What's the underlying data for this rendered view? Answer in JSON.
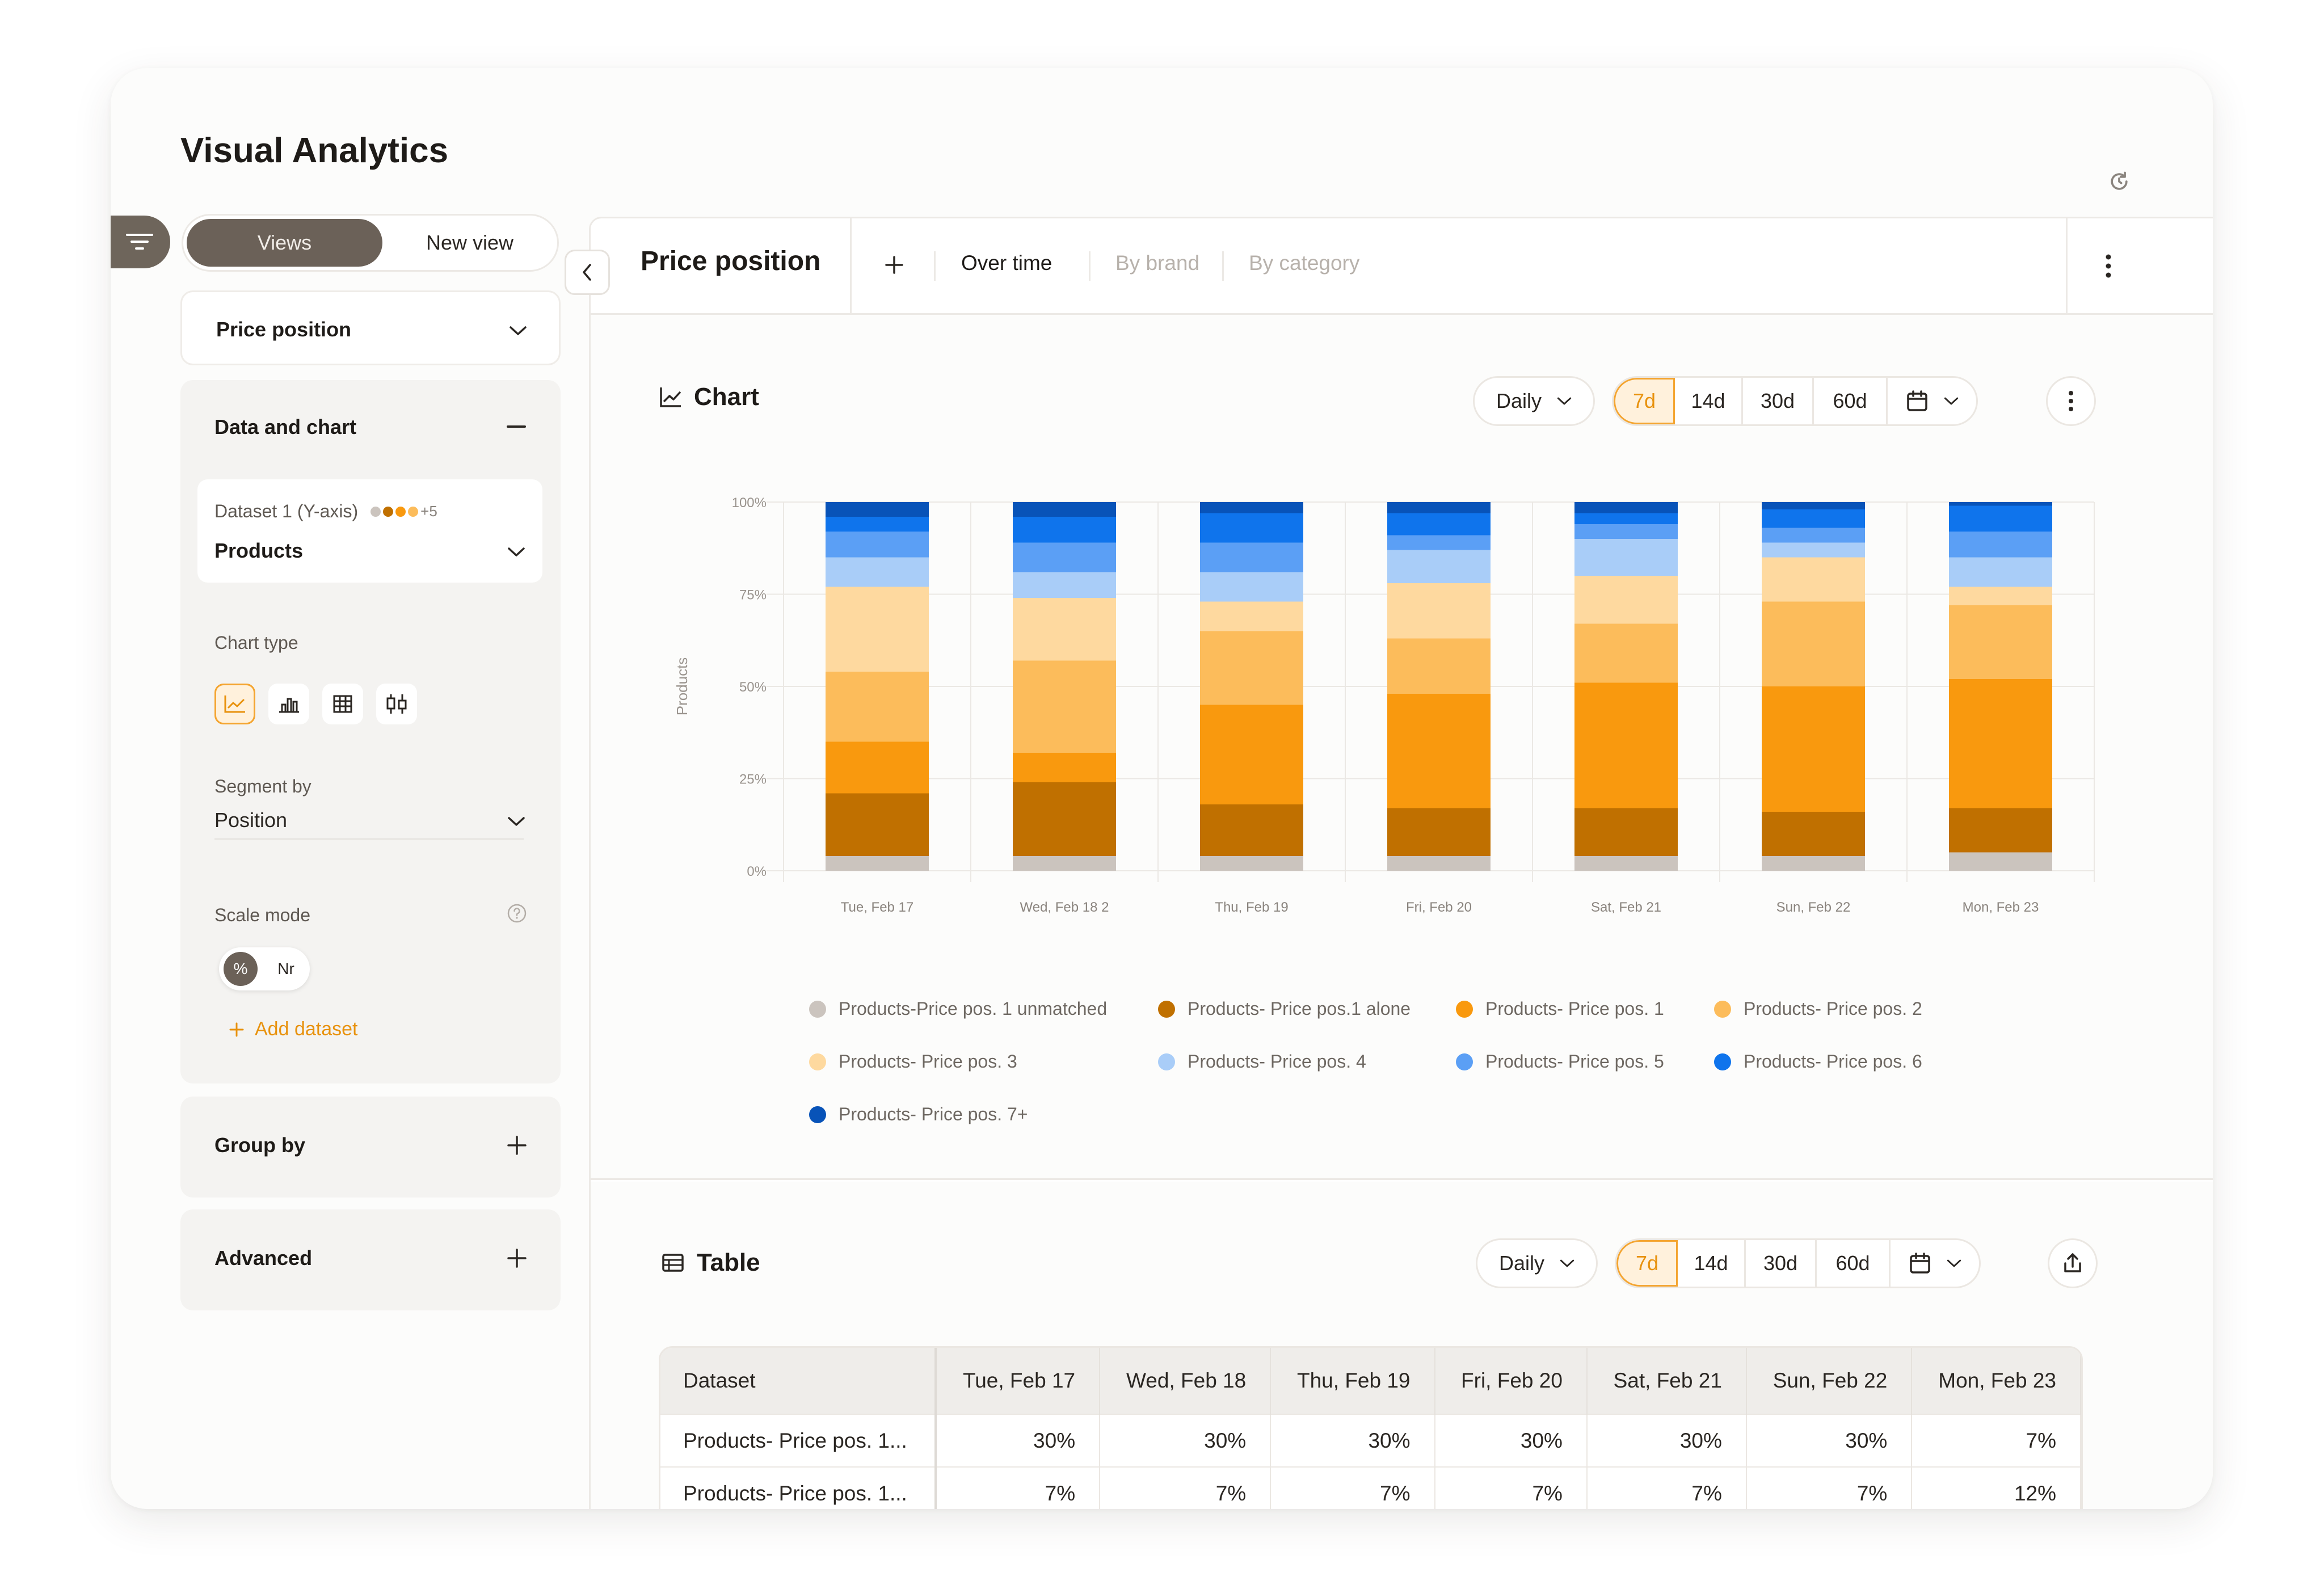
{
  "page_title": "Visual Analytics",
  "sidebar": {
    "views_label": "Views",
    "new_view_label": "New view",
    "selected_view": "Price position",
    "data_panel": {
      "title": "Data and chart",
      "dataset_label": "Dataset 1 (Y-axis)",
      "dataset_more": "+5",
      "dataset_value": "Products",
      "chart_type_label": "Chart type",
      "chart_types": [
        "line-chart-icon",
        "bar-chart-icon",
        "table-grid-icon",
        "candlestick-icon"
      ],
      "segment_by_label": "Segment by",
      "segment_by_value": "Position",
      "scale_mode_label": "Scale mode",
      "scale_pct": "%",
      "scale_nr": "Nr",
      "add_dataset": "Add dataset"
    },
    "group_by": "Group by",
    "advanced": "Advanced"
  },
  "main": {
    "title": "Price position",
    "tabs": [
      "Over time",
      "By brand",
      "By category"
    ],
    "active_tab": "Over time",
    "chart_section_title": "Chart",
    "table_section_title": "Table",
    "interval": "Daily",
    "ranges": [
      "7d",
      "14d",
      "30d",
      "60d"
    ],
    "active_range": "7d"
  },
  "colors": {
    "accent": "#f4a531",
    "s0": "#cbc4be",
    "s1": "#c07000",
    "s2": "#f9990e",
    "s3": "#fcbc5b",
    "s4": "#fed99f",
    "s5": "#a9cdf8",
    "s6": "#5b9ff5",
    "s7": "#0f74ec",
    "s8": "#0853b8"
  },
  "chart_data": {
    "type": "bar",
    "stacked": true,
    "ylabel": "Products",
    "yticks": [
      "0%",
      "25%",
      "50%",
      "75%",
      "100%"
    ],
    "ylim": [
      0,
      100
    ],
    "grid": true,
    "legend_position": "bottom",
    "categories": [
      "Tue, Feb 17",
      "Wed, Feb 18 2",
      "Thu, Feb 19",
      "Fri, Feb 20",
      "Sat, Feb 21",
      "Sun, Feb 22",
      "Mon, Feb 23"
    ],
    "series": [
      {
        "name": "Products-Price pos. 1 unmatched",
        "values": [
          4,
          4,
          4,
          4,
          4,
          4,
          5
        ]
      },
      {
        "name": "Products- Price pos.1 alone",
        "values": [
          17,
          20,
          14,
          13,
          13,
          12,
          12
        ]
      },
      {
        "name": "Products- Price pos. 1",
        "values": [
          14,
          8,
          27,
          31,
          34,
          34,
          35
        ]
      },
      {
        "name": "Products- Price pos. 2",
        "values": [
          19,
          25,
          20,
          15,
          16,
          23,
          20
        ]
      },
      {
        "name": "Products- Price pos. 3",
        "values": [
          23,
          17,
          8,
          15,
          13,
          12,
          5
        ]
      },
      {
        "name": "Products- Price pos. 4",
        "values": [
          8,
          7,
          8,
          9,
          10,
          4,
          8
        ]
      },
      {
        "name": "Products- Price pos. 5",
        "values": [
          7,
          8,
          8,
          4,
          4,
          4,
          7
        ]
      },
      {
        "name": "Products- Price pos. 6",
        "values": [
          4,
          7,
          8,
          6,
          3,
          5,
          7
        ]
      },
      {
        "name": "Products- Price pos. 7+",
        "values": [
          4,
          4,
          3,
          3,
          3,
          2,
          1
        ]
      }
    ]
  },
  "table": {
    "columns": [
      "Dataset",
      "Tue, Feb 17",
      "Wed, Feb 18",
      "Thu, Feb 19",
      "Fri, Feb 20",
      "Sat, Feb 21",
      "Sun, Feb 22",
      "Mon, Feb 23"
    ],
    "rows": [
      [
        "Products- Price pos. 1...",
        "30%",
        "30%",
        "30%",
        "30%",
        "30%",
        "30%",
        "7%"
      ],
      [
        "Products- Price pos. 1...",
        "7%",
        "7%",
        "7%",
        "7%",
        "7%",
        "7%",
        "12%"
      ]
    ]
  }
}
